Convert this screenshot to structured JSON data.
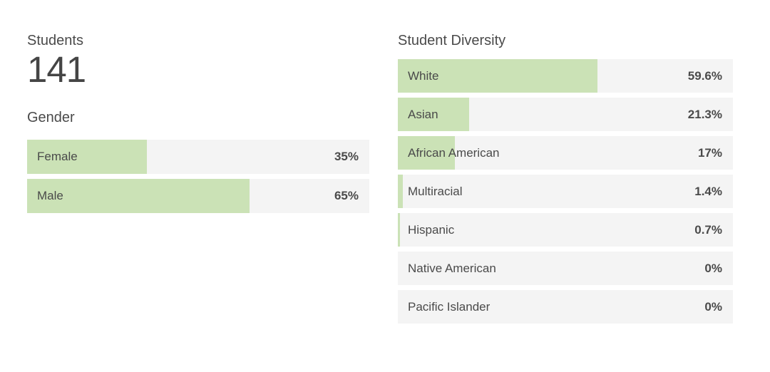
{
  "left_panel": {
    "students_label": "Students",
    "students_count": "141"
  },
  "colors": {
    "bar_fill": "#cbe2b6",
    "bar_track": "#f4f4f4",
    "text": "#4a4a4a"
  },
  "chart_data": [
    {
      "type": "bar",
      "orientation": "horizontal",
      "title": "Gender",
      "categories": [
        "Female",
        "Male"
      ],
      "values": [
        35,
        65
      ],
      "value_labels": [
        "35%",
        "65%"
      ],
      "xlim": [
        0,
        100
      ],
      "grid": false,
      "legend": false,
      "bar_color": "#cbe2b6",
      "track_color": "#f4f4f4"
    },
    {
      "type": "bar",
      "orientation": "horizontal",
      "title": "Student Diversity",
      "categories": [
        "White",
        "Asian",
        "African American",
        "Multiracial",
        "Hispanic",
        "Native American",
        "Pacific Islander"
      ],
      "values": [
        59.6,
        21.3,
        17,
        1.4,
        0.7,
        0,
        0
      ],
      "value_labels": [
        "59.6%",
        "21.3%",
        "17%",
        "1.4%",
        "0.7%",
        "0%",
        "0%"
      ],
      "xlim": [
        0,
        100
      ],
      "grid": false,
      "legend": false,
      "bar_color": "#cbe2b6",
      "track_color": "#f4f4f4"
    }
  ]
}
